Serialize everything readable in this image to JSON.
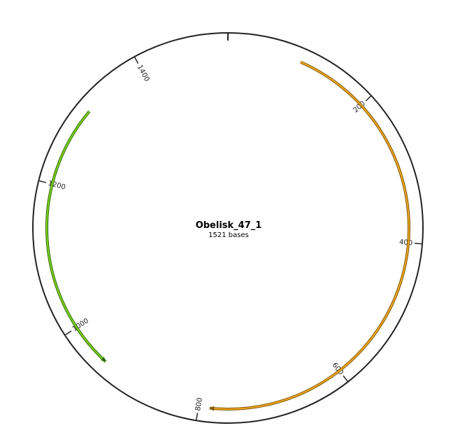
{
  "map": {
    "name": "Obelisk_47_1",
    "length_label": "1521 bases",
    "total_bases": 1521
  },
  "ticks": [
    {
      "position": 200,
      "label": "200"
    },
    {
      "position": 400,
      "label": "400"
    },
    {
      "position": 600,
      "label": "600"
    },
    {
      "position": 800,
      "label": "800"
    },
    {
      "position": 1000,
      "label": "1000"
    },
    {
      "position": 1200,
      "label": "1200"
    },
    {
      "position": 1400,
      "label": "1400"
    }
  ],
  "features": [
    {
      "start": 100,
      "end": 785,
      "strand": "forward",
      "color": "#f5a623",
      "stroke": "#7a5a00"
    },
    {
      "start": 940,
      "end": 1310,
      "strand": "reverse",
      "color": "#7ed321",
      "stroke": "#2f6b00"
    }
  ]
}
